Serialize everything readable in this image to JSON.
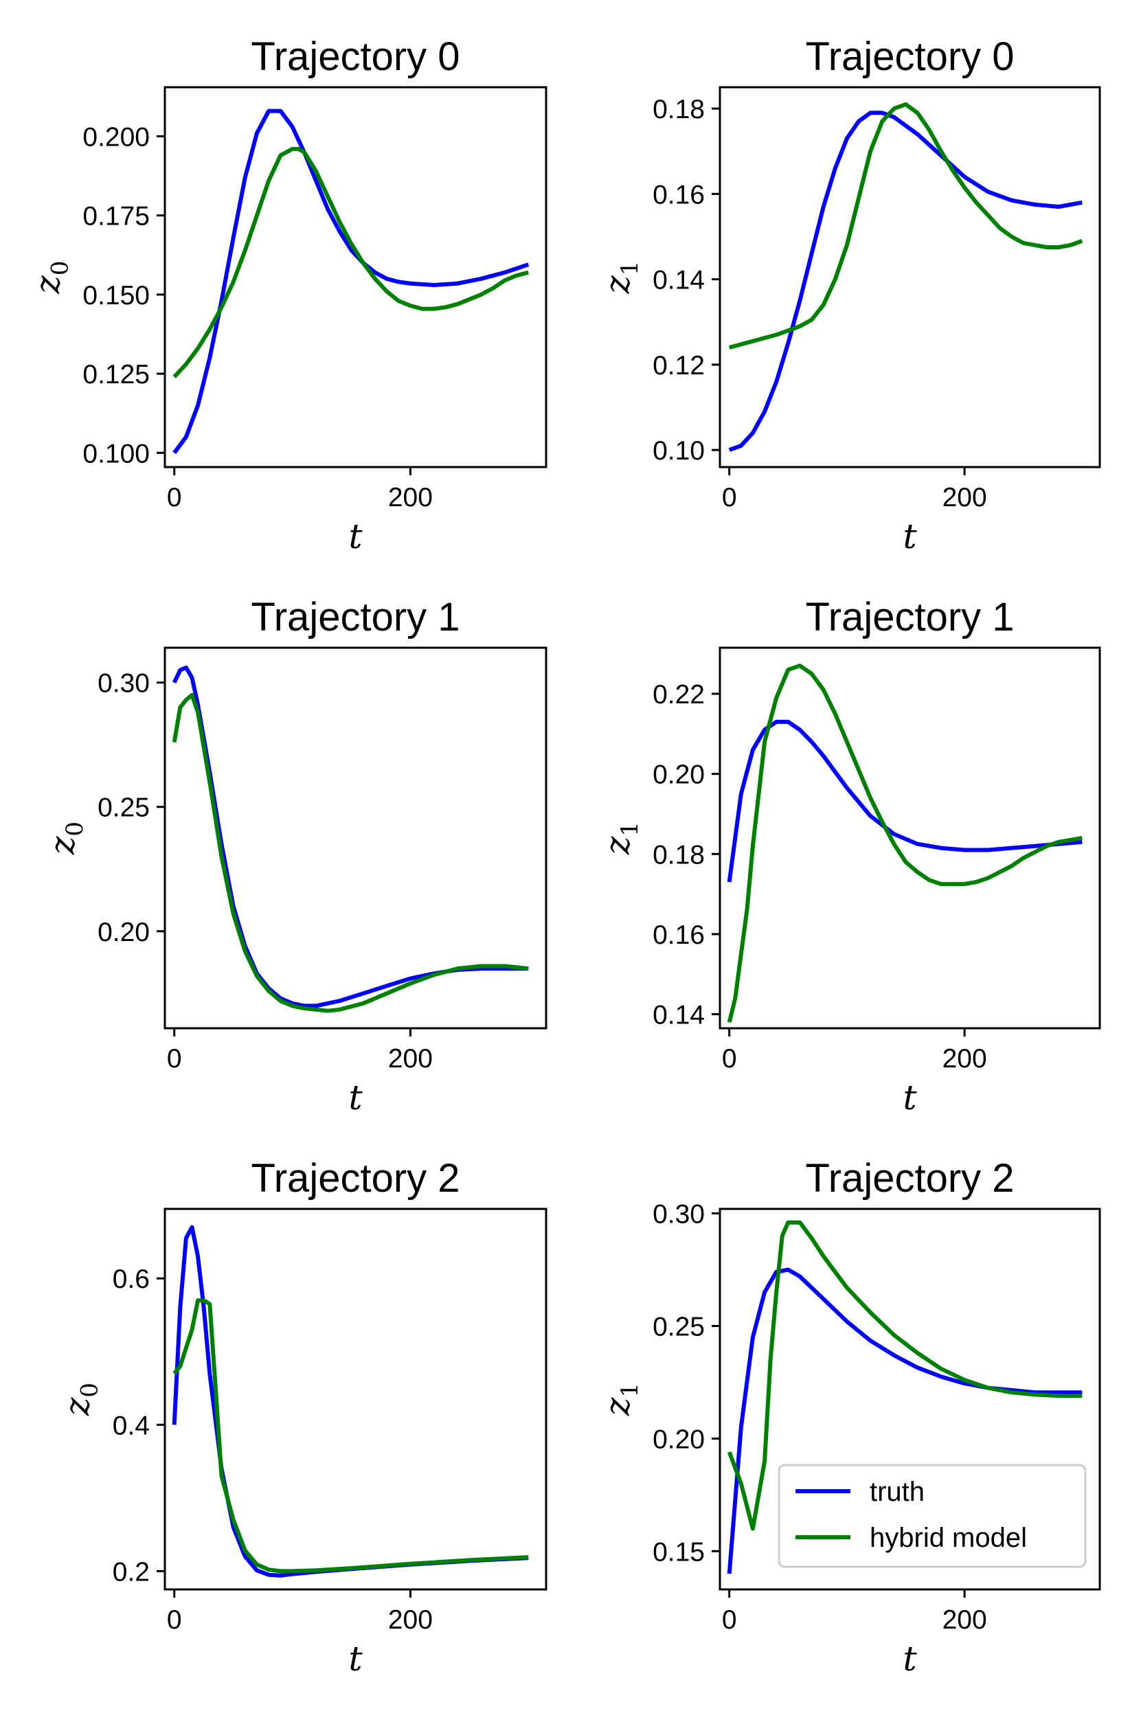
{
  "chart_data": [
    {
      "type": "line",
      "title": "Trajectory 0",
      "xlabel": "t",
      "ylabel_base": "z",
      "ylabel_sub": "0",
      "xlim": [
        -8,
        315
      ],
      "ylim": [
        0.0955,
        0.2155
      ],
      "xticks": [
        {
          "v": 0,
          "label": "0"
        },
        {
          "v": 200,
          "label": "200"
        }
      ],
      "yticks": [
        {
          "v": 0.1,
          "label": "0.100"
        },
        {
          "v": 0.125,
          "label": "0.125"
        },
        {
          "v": 0.15,
          "label": "0.150"
        },
        {
          "v": 0.175,
          "label": "0.175"
        },
        {
          "v": 0.2,
          "label": "0.200"
        }
      ],
      "series": [
        {
          "name": "truth",
          "color": "#0000ff",
          "x": [
            0,
            10,
            20,
            30,
            40,
            50,
            60,
            70,
            80,
            90,
            100,
            110,
            120,
            130,
            140,
            150,
            160,
            170,
            180,
            190,
            200,
            220,
            240,
            260,
            280,
            300
          ],
          "y": [
            0.1,
            0.105,
            0.115,
            0.13,
            0.148,
            0.168,
            0.187,
            0.201,
            0.208,
            0.208,
            0.203,
            0.195,
            0.186,
            0.177,
            0.17,
            0.164,
            0.16,
            0.157,
            0.155,
            0.154,
            0.1535,
            0.153,
            0.1535,
            0.155,
            0.157,
            0.1595
          ]
        },
        {
          "name": "hybrid model",
          "color": "#008000",
          "x": [
            0,
            10,
            20,
            30,
            40,
            50,
            60,
            70,
            80,
            90,
            100,
            105,
            110,
            120,
            130,
            140,
            150,
            160,
            170,
            180,
            190,
            200,
            210,
            220,
            230,
            240,
            250,
            260,
            270,
            280,
            290,
            300
          ],
          "y": [
            0.124,
            0.128,
            0.133,
            0.139,
            0.146,
            0.154,
            0.164,
            0.175,
            0.186,
            0.194,
            0.196,
            0.196,
            0.195,
            0.189,
            0.181,
            0.173,
            0.166,
            0.16,
            0.155,
            0.151,
            0.148,
            0.1465,
            0.1455,
            0.1455,
            0.146,
            0.147,
            0.1485,
            0.15,
            0.152,
            0.1545,
            0.156,
            0.157
          ]
        }
      ]
    },
    {
      "type": "line",
      "title": "Trajectory 0",
      "xlabel": "t",
      "ylabel_base": "z",
      "ylabel_sub": "1",
      "xlim": [
        -8,
        315
      ],
      "ylim": [
        0.096,
        0.185
      ],
      "xticks": [
        {
          "v": 0,
          "label": "0"
        },
        {
          "v": 200,
          "label": "200"
        }
      ],
      "yticks": [
        {
          "v": 0.1,
          "label": "0.10"
        },
        {
          "v": 0.12,
          "label": "0.12"
        },
        {
          "v": 0.14,
          "label": "0.14"
        },
        {
          "v": 0.16,
          "label": "0.16"
        },
        {
          "v": 0.18,
          "label": "0.18"
        }
      ],
      "series": [
        {
          "name": "truth",
          "color": "#0000ff",
          "x": [
            0,
            10,
            20,
            30,
            40,
            50,
            60,
            70,
            80,
            90,
            100,
            110,
            120,
            130,
            140,
            150,
            160,
            170,
            180,
            190,
            200,
            220,
            240,
            260,
            280,
            300
          ],
          "y": [
            0.1,
            0.101,
            0.104,
            0.109,
            0.116,
            0.125,
            0.135,
            0.146,
            0.157,
            0.166,
            0.173,
            0.177,
            0.179,
            0.179,
            0.178,
            0.176,
            0.174,
            0.1715,
            0.169,
            0.1665,
            0.164,
            0.1605,
            0.1585,
            0.1575,
            0.157,
            0.158
          ]
        },
        {
          "name": "hybrid model",
          "color": "#008000",
          "x": [
            0,
            20,
            40,
            60,
            70,
            80,
            90,
            100,
            110,
            120,
            130,
            140,
            150,
            160,
            170,
            180,
            190,
            200,
            210,
            220,
            230,
            240,
            250,
            260,
            270,
            280,
            290,
            300
          ],
          "y": [
            0.124,
            0.1255,
            0.127,
            0.129,
            0.1305,
            0.134,
            0.14,
            0.148,
            0.159,
            0.17,
            0.177,
            0.18,
            0.181,
            0.179,
            0.175,
            0.17,
            0.1655,
            0.1615,
            0.158,
            0.155,
            0.152,
            0.15,
            0.1485,
            0.148,
            0.1475,
            0.1475,
            0.148,
            0.149
          ]
        }
      ]
    },
    {
      "type": "line",
      "title": "Trajectory 1",
      "xlabel": "t",
      "ylabel_base": "z",
      "ylabel_sub": "0",
      "xlim": [
        -8,
        315
      ],
      "ylim": [
        0.161,
        0.314
      ],
      "xticks": [
        {
          "v": 0,
          "label": "0"
        },
        {
          "v": 200,
          "label": "200"
        }
      ],
      "yticks": [
        {
          "v": 0.2,
          "label": "0.20"
        },
        {
          "v": 0.25,
          "label": "0.25"
        },
        {
          "v": 0.3,
          "label": "0.30"
        }
      ],
      "series": [
        {
          "name": "truth",
          "color": "#0000ff",
          "x": [
            0,
            5,
            10,
            15,
            20,
            30,
            40,
            50,
            60,
            70,
            80,
            90,
            100,
            110,
            120,
            140,
            160,
            180,
            200,
            220,
            240,
            260,
            280,
            300
          ],
          "y": [
            0.3,
            0.305,
            0.306,
            0.302,
            0.291,
            0.264,
            0.235,
            0.21,
            0.194,
            0.183,
            0.177,
            0.173,
            0.171,
            0.17,
            0.17,
            0.172,
            0.175,
            0.178,
            0.181,
            0.183,
            0.1845,
            0.185,
            0.185,
            0.185
          ]
        },
        {
          "name": "hybrid model",
          "color": "#008000",
          "x": [
            0,
            5,
            10,
            15,
            20,
            30,
            40,
            50,
            60,
            70,
            80,
            90,
            100,
            110,
            120,
            130,
            140,
            160,
            180,
            200,
            220,
            240,
            260,
            270,
            280,
            300
          ],
          "y": [
            0.276,
            0.29,
            0.293,
            0.295,
            0.288,
            0.26,
            0.23,
            0.207,
            0.192,
            0.182,
            0.176,
            0.172,
            0.17,
            0.169,
            0.1685,
            0.168,
            0.1685,
            0.171,
            0.175,
            0.179,
            0.1825,
            0.185,
            0.186,
            0.186,
            0.186,
            0.185
          ]
        }
      ]
    },
    {
      "type": "line",
      "title": "Trajectory 1",
      "xlabel": "t",
      "ylabel_base": "z",
      "ylabel_sub": "1",
      "xlim": [
        -8,
        315
      ],
      "ylim": [
        0.1365,
        0.2315
      ],
      "xticks": [
        {
          "v": 0,
          "label": "0"
        },
        {
          "v": 200,
          "label": "200"
        }
      ],
      "yticks": [
        {
          "v": 0.14,
          "label": "0.14"
        },
        {
          "v": 0.16,
          "label": "0.16"
        },
        {
          "v": 0.18,
          "label": "0.18"
        },
        {
          "v": 0.2,
          "label": "0.20"
        },
        {
          "v": 0.22,
          "label": "0.22"
        }
      ],
      "series": [
        {
          "name": "truth",
          "color": "#0000ff",
          "x": [
            0,
            10,
            20,
            30,
            40,
            50,
            60,
            70,
            80,
            90,
            100,
            120,
            140,
            160,
            180,
            200,
            220,
            240,
            260,
            280,
            300
          ],
          "y": [
            0.173,
            0.195,
            0.206,
            0.211,
            0.213,
            0.213,
            0.211,
            0.208,
            0.2045,
            0.2005,
            0.1965,
            0.1895,
            0.185,
            0.1825,
            0.1815,
            0.181,
            0.181,
            0.1815,
            0.182,
            0.1825,
            0.183
          ]
        },
        {
          "name": "hybrid model",
          "color": "#008000",
          "x": [
            0,
            5,
            10,
            15,
            20,
            30,
            40,
            50,
            60,
            70,
            80,
            90,
            100,
            110,
            120,
            130,
            140,
            150,
            160,
            170,
            180,
            190,
            200,
            210,
            220,
            230,
            240,
            250,
            260,
            270,
            280,
            290,
            300
          ],
          "y": [
            0.138,
            0.144,
            0.155,
            0.166,
            0.182,
            0.208,
            0.219,
            0.226,
            0.227,
            0.225,
            0.221,
            0.215,
            0.208,
            0.201,
            0.194,
            0.188,
            0.1825,
            0.178,
            0.1755,
            0.1735,
            0.1725,
            0.1725,
            0.1725,
            0.173,
            0.174,
            0.1755,
            0.177,
            0.179,
            0.1805,
            0.182,
            0.183,
            0.1835,
            0.184
          ]
        }
      ]
    },
    {
      "type": "line",
      "title": "Trajectory 2",
      "xlabel": "t",
      "ylabel_base": "z",
      "ylabel_sub": "0",
      "xlim": [
        -8,
        315
      ],
      "ylim": [
        0.175,
        0.695
      ],
      "xticks": [
        {
          "v": 0,
          "label": "0"
        },
        {
          "v": 200,
          "label": "200"
        }
      ],
      "yticks": [
        {
          "v": 0.2,
          "label": "0.2"
        },
        {
          "v": 0.4,
          "label": "0.4"
        },
        {
          "v": 0.6,
          "label": "0.6"
        }
      ],
      "series": [
        {
          "name": "truth",
          "color": "#0000ff",
          "x": [
            0,
            5,
            10,
            15,
            20,
            25,
            30,
            40,
            50,
            60,
            70,
            80,
            90,
            100,
            120,
            150,
            200,
            250,
            300
          ],
          "y": [
            0.4,
            0.56,
            0.655,
            0.67,
            0.63,
            0.56,
            0.47,
            0.34,
            0.26,
            0.22,
            0.201,
            0.195,
            0.194,
            0.196,
            0.199,
            0.203,
            0.209,
            0.214,
            0.218
          ]
        },
        {
          "name": "hybrid model",
          "color": "#008000",
          "x": [
            0,
            5,
            10,
            15,
            20,
            25,
            30,
            35,
            40,
            50,
            60,
            70,
            80,
            90,
            100,
            120,
            150,
            200,
            250,
            300
          ],
          "y": [
            0.47,
            0.48,
            0.505,
            0.53,
            0.57,
            0.57,
            0.565,
            0.45,
            0.33,
            0.27,
            0.228,
            0.209,
            0.202,
            0.2,
            0.2,
            0.201,
            0.204,
            0.21,
            0.215,
            0.219
          ]
        }
      ]
    },
    {
      "type": "line",
      "title": "Trajectory 2",
      "xlabel": "t",
      "ylabel_base": "z",
      "ylabel_sub": "1",
      "xlim": [
        -8,
        315
      ],
      "ylim": [
        0.133,
        0.302
      ],
      "xticks": [
        {
          "v": 0,
          "label": "0"
        },
        {
          "v": 200,
          "label": "200"
        }
      ],
      "yticks": [
        {
          "v": 0.15,
          "label": "0.15"
        },
        {
          "v": 0.2,
          "label": "0.20"
        },
        {
          "v": 0.25,
          "label": "0.25"
        },
        {
          "v": 0.3,
          "label": "0.30"
        }
      ],
      "legend_position": "lower-right",
      "series": [
        {
          "name": "truth",
          "color": "#0000ff",
          "x": [
            0,
            10,
            20,
            30,
            40,
            50,
            60,
            70,
            80,
            90,
            100,
            120,
            140,
            160,
            180,
            200,
            220,
            240,
            260,
            280,
            300
          ],
          "y": [
            0.14,
            0.205,
            0.245,
            0.265,
            0.274,
            0.275,
            0.272,
            0.267,
            0.262,
            0.257,
            0.252,
            0.2435,
            0.237,
            0.2315,
            0.2275,
            0.2245,
            0.2225,
            0.2215,
            0.2205,
            0.2205,
            0.2205
          ]
        },
        {
          "name": "hybrid model",
          "color": "#008000",
          "x": [
            0,
            10,
            20,
            30,
            35,
            40,
            45,
            50,
            55,
            60,
            70,
            80,
            90,
            100,
            120,
            140,
            160,
            180,
            200,
            220,
            240,
            260,
            280,
            300
          ],
          "y": [
            0.194,
            0.18,
            0.16,
            0.19,
            0.235,
            0.265,
            0.29,
            0.296,
            0.296,
            0.296,
            0.289,
            0.281,
            0.274,
            0.267,
            0.256,
            0.246,
            0.238,
            0.231,
            0.226,
            0.2225,
            0.2205,
            0.2195,
            0.219,
            0.219
          ]
        }
      ]
    }
  ]
}
